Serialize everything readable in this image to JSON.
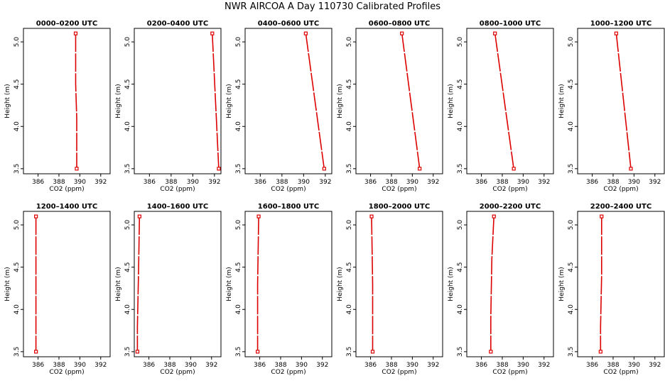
{
  "title": "NWR AIRCOA A  Day 110730  Calibrated Profiles",
  "chart_data": [
    {
      "type": "line",
      "title": "0000–0200 UTC",
      "xlabel": "CO2 (ppm)",
      "ylabel": "Height (m)",
      "xlim": [
        384.6,
        392.9
      ],
      "ylim": [
        3.44,
        5.16
      ],
      "xticks": [
        386,
        388,
        390,
        392
      ],
      "yticks": [
        3.5,
        4.0,
        4.5,
        5.0
      ],
      "series": [
        {
          "points": [
            [
              389.6,
              5.1
            ],
            [
              389.6,
              4.5
            ],
            [
              389.7,
              4.1
            ],
            [
              389.7,
              3.5
            ]
          ]
        }
      ]
    },
    {
      "type": "line",
      "title": "0200–0400 UTC",
      "xlabel": "CO2 (ppm)",
      "ylabel": "Height (m)",
      "xlim": [
        384.6,
        392.6
      ],
      "ylim": [
        3.44,
        5.16
      ],
      "xticks": [
        386,
        388,
        390,
        392
      ],
      "yticks": [
        3.5,
        4.0,
        4.5,
        5.0
      ],
      "series": [
        {
          "points": [
            [
              391.8,
              5.1
            ],
            [
              392.4,
              3.5
            ]
          ]
        }
      ]
    },
    {
      "type": "line",
      "title": "0400–0600 UTC",
      "xlabel": "CO2 (ppm)",
      "ylabel": "Height (m)",
      "xlim": [
        384.6,
        392.6
      ],
      "ylim": [
        3.44,
        5.16
      ],
      "xticks": [
        386,
        388,
        390,
        392
      ],
      "yticks": [
        3.5,
        4.0,
        4.5,
        5.0
      ],
      "series": [
        {
          "points": [
            [
              390.2,
              5.1
            ],
            [
              391.9,
              3.5
            ]
          ]
        }
      ]
    },
    {
      "type": "line",
      "title": "0600–0800 UTC",
      "xlabel": "CO2 (ppm)",
      "ylabel": "Height (m)",
      "xlim": [
        384.6,
        392.9
      ],
      "ylim": [
        3.44,
        5.16
      ],
      "xticks": [
        386,
        388,
        390,
        392
      ],
      "yticks": [
        3.5,
        4.0,
        4.5,
        5.0
      ],
      "series": [
        {
          "points": [
            [
              389.0,
              5.1
            ],
            [
              390.7,
              3.5
            ]
          ]
        }
      ]
    },
    {
      "type": "line",
      "title": "0800–1000 UTC",
      "xlabel": "CO2 (ppm)",
      "ylabel": "Height (m)",
      "xlim": [
        384.6,
        392.9
      ],
      "ylim": [
        3.44,
        5.16
      ],
      "xticks": [
        386,
        388,
        390,
        392
      ],
      "yticks": [
        3.5,
        4.0,
        4.5,
        5.0
      ],
      "series": [
        {
          "points": [
            [
              387.3,
              5.1
            ],
            [
              389.1,
              3.5
            ]
          ]
        }
      ]
    },
    {
      "type": "line",
      "title": "1000–1200 UTC",
      "xlabel": "CO2 (ppm)",
      "ylabel": "Height (m)",
      "xlim": [
        384.6,
        392.9
      ],
      "ylim": [
        3.44,
        5.16
      ],
      "xticks": [
        386,
        388,
        390,
        392
      ],
      "yticks": [
        3.5,
        4.0,
        4.5,
        5.0
      ],
      "series": [
        {
          "points": [
            [
              388.3,
              5.1
            ],
            [
              389.7,
              3.5
            ]
          ]
        }
      ]
    },
    {
      "type": "line",
      "title": "1200–1400 UTC",
      "xlabel": "CO2 (ppm)",
      "ylabel": "Height (m)",
      "xlim": [
        384.6,
        392.9
      ],
      "ylim": [
        3.44,
        5.16
      ],
      "xticks": [
        386,
        388,
        390,
        392
      ],
      "yticks": [
        3.5,
        4.0,
        4.5,
        5.0
      ],
      "series": [
        {
          "points": [
            [
              385.8,
              5.1
            ],
            [
              385.8,
              3.5
            ]
          ]
        }
      ]
    },
    {
      "type": "line",
      "title": "1400–1600 UTC",
      "xlabel": "CO2 (ppm)",
      "ylabel": "Height (m)",
      "xlim": [
        384.6,
        392.9
      ],
      "ylim": [
        3.44,
        5.16
      ],
      "xticks": [
        386,
        388,
        390,
        392
      ],
      "yticks": [
        3.5,
        4.0,
        4.5,
        5.0
      ],
      "series": [
        {
          "points": [
            [
              385.1,
              5.1
            ],
            [
              385.0,
              4.4
            ],
            [
              384.9,
              3.8
            ],
            [
              384.9,
              3.5
            ]
          ]
        }
      ]
    },
    {
      "type": "line",
      "title": "1600–1800 UTC",
      "xlabel": "CO2 (ppm)",
      "ylabel": "Height (m)",
      "xlim": [
        384.6,
        392.9
      ],
      "ylim": [
        3.44,
        5.16
      ],
      "xticks": [
        386,
        388,
        390,
        392
      ],
      "yticks": [
        3.5,
        4.0,
        4.5,
        5.0
      ],
      "series": [
        {
          "points": [
            [
              385.9,
              5.1
            ],
            [
              385.8,
              4.3
            ],
            [
              385.8,
              3.8
            ],
            [
              385.8,
              3.5
            ]
          ]
        }
      ]
    },
    {
      "type": "line",
      "title": "1800–2000 UTC",
      "xlabel": "CO2 (ppm)",
      "ylabel": "Height (m)",
      "xlim": [
        384.6,
        392.9
      ],
      "ylim": [
        3.44,
        5.16
      ],
      "xticks": [
        386,
        388,
        390,
        392
      ],
      "yticks": [
        3.5,
        4.0,
        4.5,
        5.0
      ],
      "series": [
        {
          "points": [
            [
              386.1,
              5.1
            ],
            [
              386.2,
              4.3
            ],
            [
              386.2,
              3.7
            ],
            [
              386.2,
              3.5
            ]
          ]
        }
      ]
    },
    {
      "type": "line",
      "title": "2000–2200 UTC",
      "xlabel": "CO2 (ppm)",
      "ylabel": "Height (m)",
      "xlim": [
        384.6,
        392.9
      ],
      "ylim": [
        3.44,
        5.16
      ],
      "xticks": [
        386,
        388,
        390,
        392
      ],
      "yticks": [
        3.5,
        4.0,
        4.5,
        5.0
      ],
      "series": [
        {
          "points": [
            [
              387.2,
              5.1
            ],
            [
              387.0,
              4.6
            ],
            [
              386.9,
              3.9
            ],
            [
              386.9,
              3.5
            ]
          ]
        }
      ]
    },
    {
      "type": "line",
      "title": "2200–2400 UTC",
      "xlabel": "CO2 (ppm)",
      "ylabel": "Height (m)",
      "xlim": [
        384.6,
        392.9
      ],
      "ylim": [
        3.44,
        5.16
      ],
      "xticks": [
        386,
        388,
        390,
        392
      ],
      "yticks": [
        3.5,
        4.0,
        4.5,
        5.0
      ],
      "series": [
        {
          "points": [
            [
              386.9,
              5.1
            ],
            [
              386.9,
              4.4
            ],
            [
              386.8,
              3.8
            ],
            [
              386.8,
              3.5
            ]
          ]
        }
      ]
    }
  ],
  "style": {
    "line_color": "#dd0000",
    "axis_color": "#000000",
    "background": "#ffffff"
  }
}
